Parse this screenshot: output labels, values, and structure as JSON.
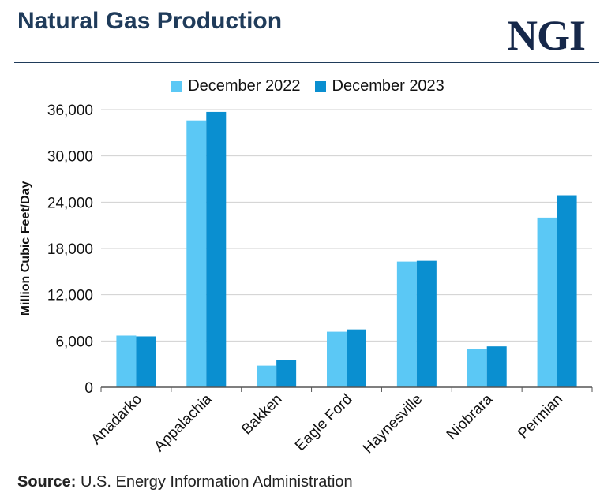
{
  "header": {
    "title": "Natural Gas Production",
    "logo": "NGI"
  },
  "source": {
    "label": "Source:",
    "text": "U.S. Energy Information Administration"
  },
  "colors": {
    "dec2022": "#5bc8f5",
    "dec2023": "#0a8fd0",
    "axis": "#555555",
    "grid": "#d0d0d0",
    "title": "#1f3b5a"
  },
  "chart_data": {
    "type": "bar",
    "title": "Natural Gas Production",
    "xlabel": "",
    "ylabel": "Million Cubic Feet/Day",
    "ylim": [
      0,
      36000
    ],
    "yticks": [
      0,
      6000,
      12000,
      18000,
      24000,
      30000,
      36000
    ],
    "ytick_labels": [
      "0",
      "6,000",
      "12,000",
      "18,000",
      "24,000",
      "30,000",
      "36,000"
    ],
    "grid": true,
    "legend_position": "top-center",
    "categories": [
      "Anadarko",
      "Appalachia",
      "Bakken",
      "Eagle Ford",
      "Haynesville",
      "Niobrara",
      "Permian"
    ],
    "series": [
      {
        "name": "December 2022",
        "values": [
          6700,
          34600,
          2800,
          7200,
          16300,
          5000,
          22000
        ]
      },
      {
        "name": "December 2023",
        "values": [
          6600,
          35700,
          3500,
          7500,
          16400,
          5300,
          24900
        ]
      }
    ]
  }
}
